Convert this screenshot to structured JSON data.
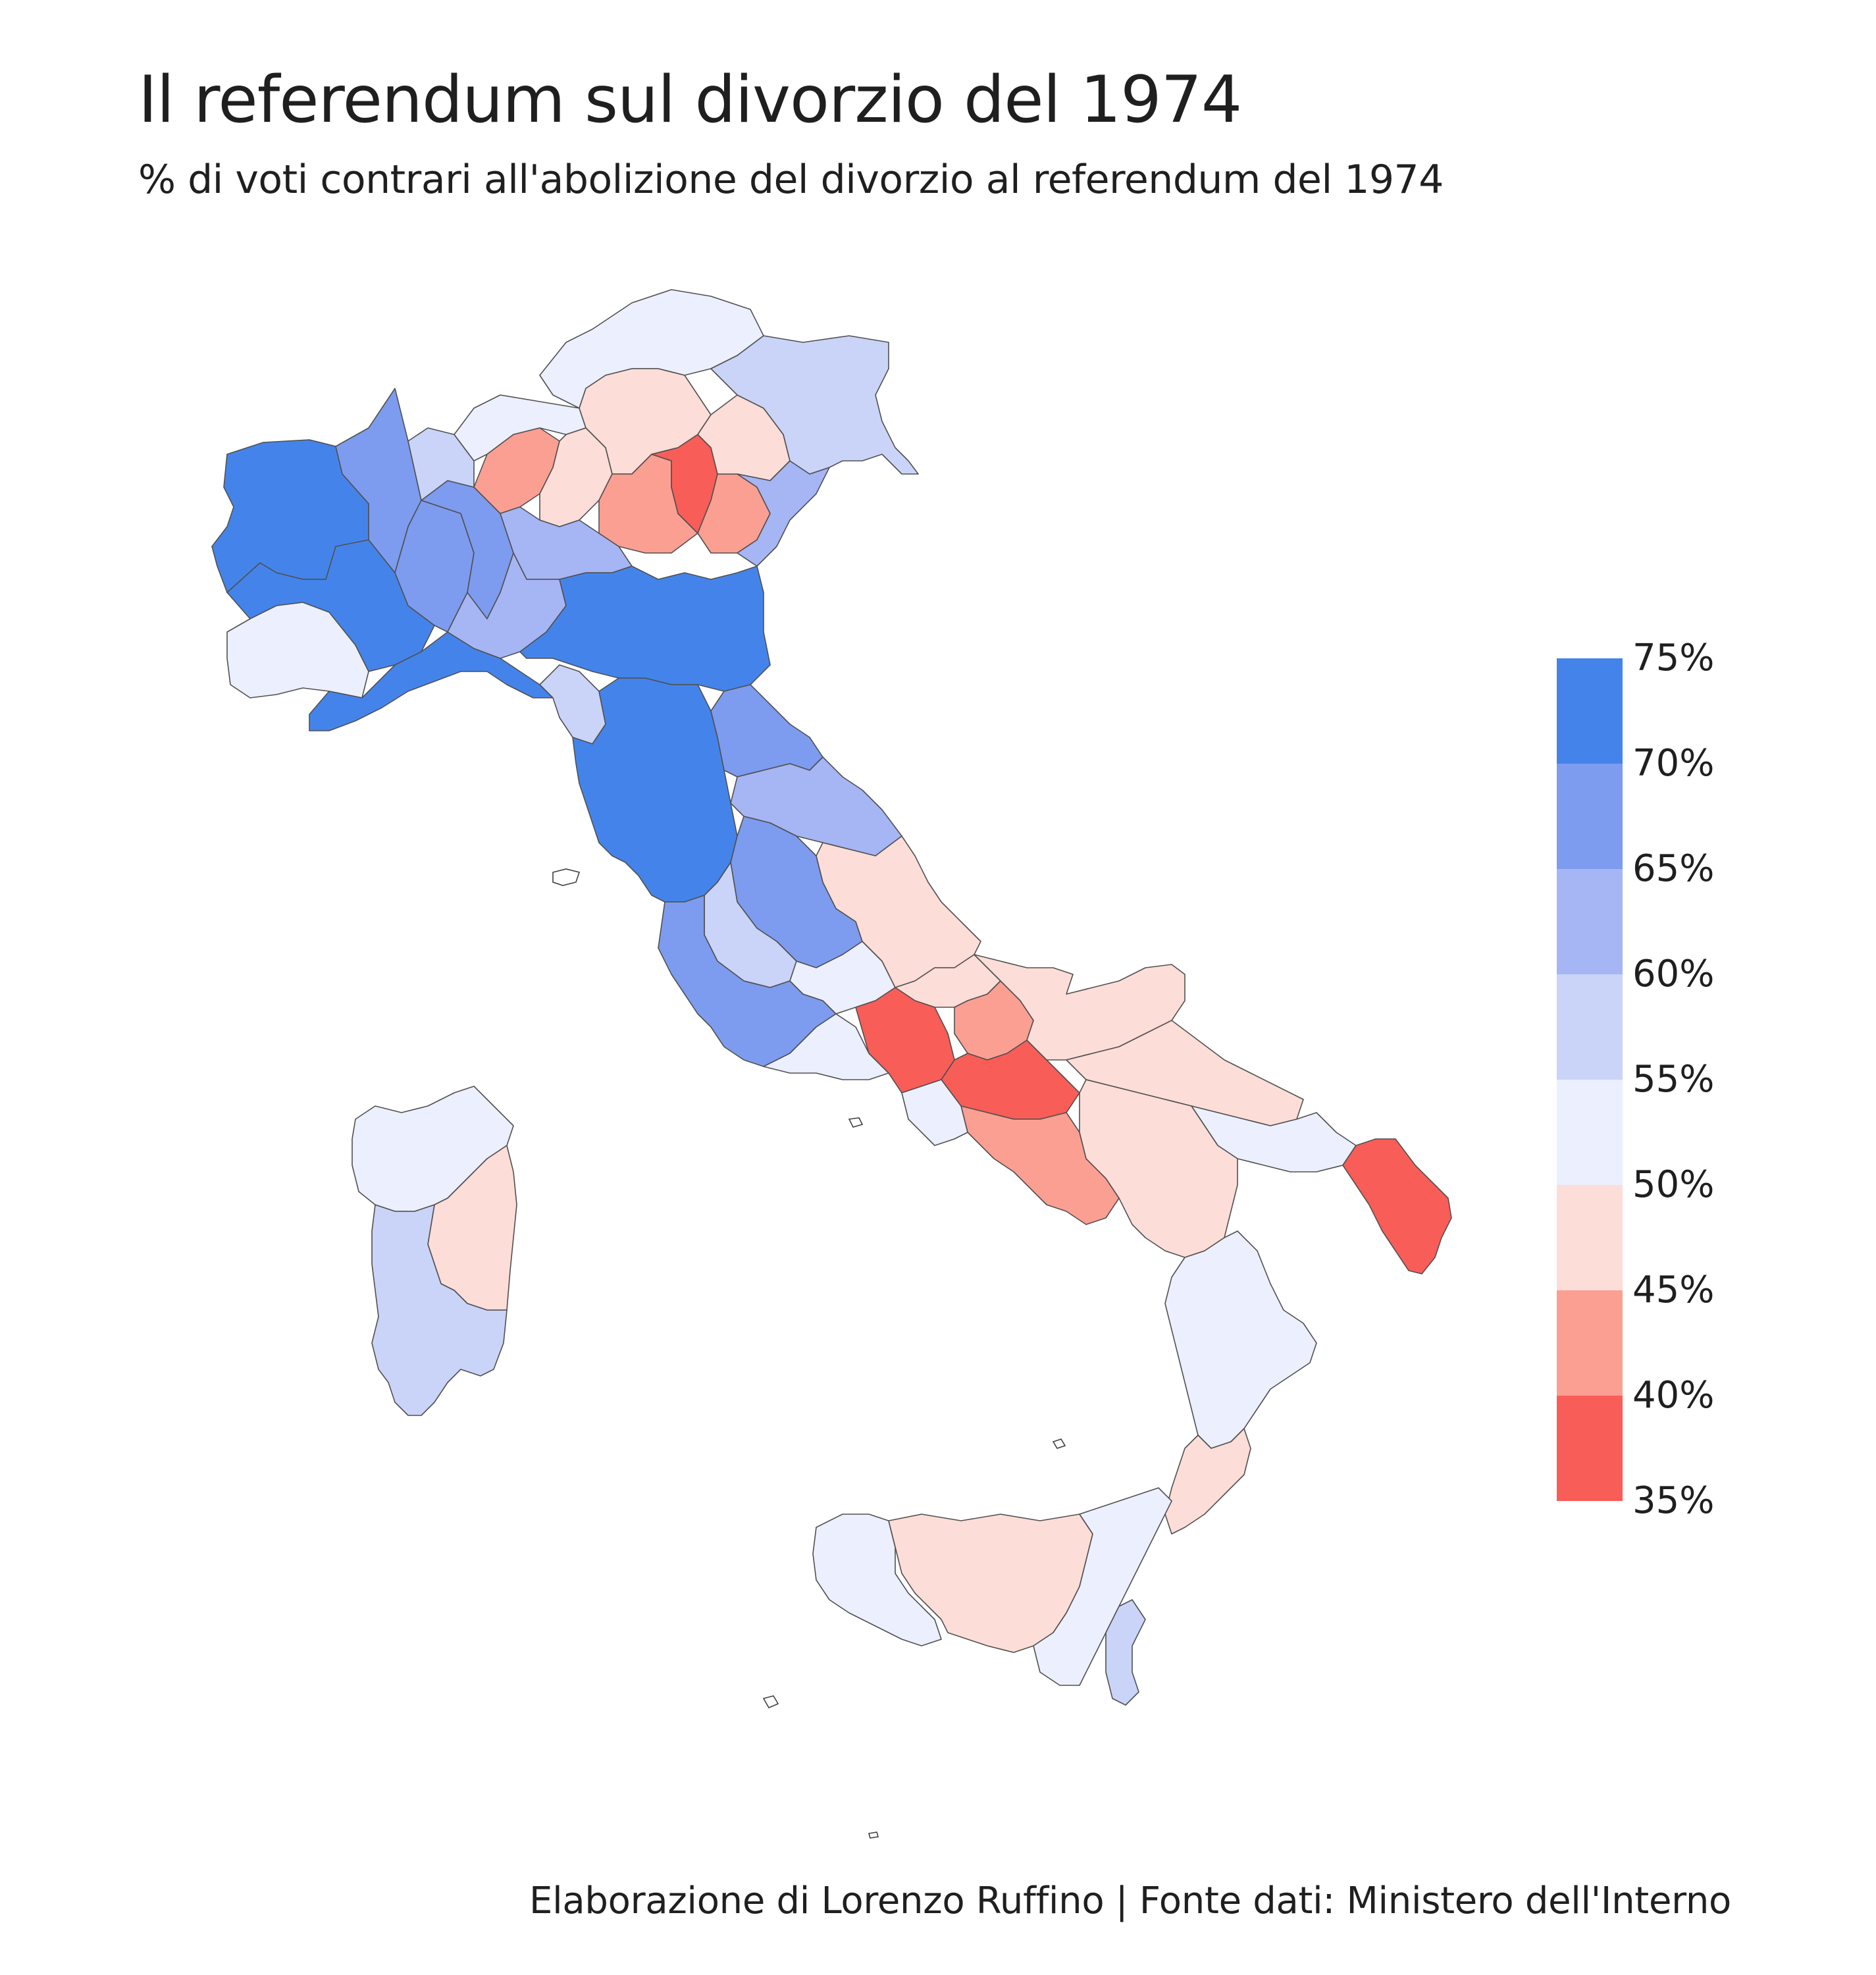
{
  "title": "Il referendum sul divorzio del 1974",
  "subtitle": "% di voti contrari all'abolizione del divorzio al referendum del 1974",
  "caption": "Elaborazione di Lorenzo Ruffino | Fonte dati: Ministero dell'Interno",
  "legend": {
    "labels": [
      "75%",
      "70%",
      "65%",
      "60%",
      "55%",
      "50%",
      "45%",
      "40%",
      "35%"
    ],
    "bins": [
      {
        "range": [
          70,
          75
        ],
        "color": "#4484ea"
      },
      {
        "range": [
          65,
          70
        ],
        "color": "#7d9cef"
      },
      {
        "range": [
          60,
          65
        ],
        "color": "#a6b5f4"
      },
      {
        "range": [
          55,
          60
        ],
        "color": "#cad4f8"
      },
      {
        "range": [
          50,
          55
        ],
        "color": "#eceffd"
      },
      {
        "range": [
          45,
          50
        ],
        "color": "#fdddd8"
      },
      {
        "range": [
          40,
          45
        ],
        "color": "#fb9f93"
      },
      {
        "range": [
          35,
          40
        ],
        "color": "#f95d58"
      }
    ]
  },
  "map_data": {
    "metric": "% di voti contrari all'abolizione del divorzio",
    "regions": [
      {
        "name": "Valle d'Aosta / Torino nord",
        "bin": 0
      },
      {
        "name": "Torino",
        "bin": 0
      },
      {
        "name": "Cuneo",
        "bin": 4
      },
      {
        "name": "Vercelli / Novara",
        "bin": 1
      },
      {
        "name": "Asti / Alessandria",
        "bin": 1
      },
      {
        "name": "Liguria",
        "bin": 0
      },
      {
        "name": "Milano / Pavia",
        "bin": 1
      },
      {
        "name": "Como / Varese",
        "bin": 3
      },
      {
        "name": "Sondrio",
        "bin": 4
      },
      {
        "name": "Bergamo",
        "bin": 6
      },
      {
        "name": "Brescia",
        "bin": 5
      },
      {
        "name": "Cremona / Mantova",
        "bin": 2
      },
      {
        "name": "Trentino-Alto Adige",
        "bin": 4
      },
      {
        "name": "Trento",
        "bin": 5
      },
      {
        "name": "Verona",
        "bin": 6
      },
      {
        "name": "Vicenza",
        "bin": 7
      },
      {
        "name": "Padova / Treviso",
        "bin": 6
      },
      {
        "name": "Belluno",
        "bin": 5
      },
      {
        "name": "Venezia / Rovigo",
        "bin": 2
      },
      {
        "name": "Friuli-Venezia Giulia",
        "bin": 3
      },
      {
        "name": "Emilia-Romagna",
        "bin": 0
      },
      {
        "name": "Piacenza / Parma",
        "bin": 2
      },
      {
        "name": "Toscana",
        "bin": 0
      },
      {
        "name": "Lucca",
        "bin": 3
      },
      {
        "name": "Marche nord",
        "bin": 1
      },
      {
        "name": "Marche sud",
        "bin": 2
      },
      {
        "name": "Umbria",
        "bin": 1
      },
      {
        "name": "Lazio nord",
        "bin": 3
      },
      {
        "name": "Roma",
        "bin": 1
      },
      {
        "name": "Latina / Frosinone",
        "bin": 4
      },
      {
        "name": "Abruzzo",
        "bin": 5
      },
      {
        "name": "Molise",
        "bin": 5
      },
      {
        "name": "Caserta",
        "bin": 7
      },
      {
        "name": "Benevento",
        "bin": 6
      },
      {
        "name": "Avellino",
        "bin": 7
      },
      {
        "name": "Salerno",
        "bin": 6
      },
      {
        "name": "Napoli",
        "bin": 4
      },
      {
        "name": "Foggia",
        "bin": 5
      },
      {
        "name": "Bari",
        "bin": 5
      },
      {
        "name": "Taranto / Brindisi",
        "bin": 4
      },
      {
        "name": "Lecce",
        "bin": 7
      },
      {
        "name": "Basilicata",
        "bin": 5
      },
      {
        "name": "Calabria",
        "bin": 4
      },
      {
        "name": "Reggio Calabria",
        "bin": 5
      },
      {
        "name": "Sicilia ovest",
        "bin": 4
      },
      {
        "name": "Sicilia centro",
        "bin": 5
      },
      {
        "name": "Sicilia est",
        "bin": 4
      },
      {
        "name": "Catania / Siracusa",
        "bin": 3
      },
      {
        "name": "Sardegna nord",
        "bin": 4
      },
      {
        "name": "Sardegna centro",
        "bin": 5
      },
      {
        "name": "Sardegna sud",
        "bin": 3
      }
    ]
  }
}
